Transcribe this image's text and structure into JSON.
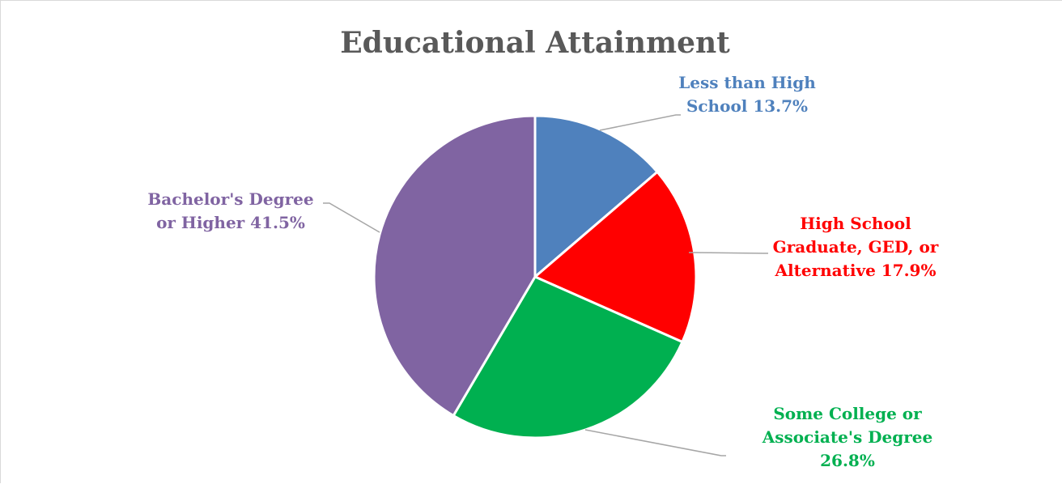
{
  "chart_data": {
    "type": "pie",
    "title": "Educational Attainment",
    "slices": [
      {
        "name": "Less than High School",
        "value": 13.7,
        "label_lines": [
          "Less than High",
          "School 13.7%"
        ],
        "color": "#4F81BD"
      },
      {
        "name": "High School Graduate, GED, or Alternative",
        "value": 17.9,
        "label_lines": [
          "High School",
          "Graduate, GED, or",
          "Alternative 17.9%"
        ],
        "color": "#FF0000"
      },
      {
        "name": "Some College or Associate's Degree",
        "value": 26.8,
        "label_lines": [
          "Some College or",
          "Associate's Degree",
          "26.8%"
        ],
        "color": "#00B050"
      },
      {
        "name": "Bachelor's Degree or Higher",
        "value": 41.5,
        "label_lines": [
          "Bachelor's Degree",
          "or Higher 41.5%"
        ],
        "color": "#8064A2"
      }
    ],
    "start_angle_deg": 0,
    "direction": "clockwise",
    "legend": "none"
  }
}
